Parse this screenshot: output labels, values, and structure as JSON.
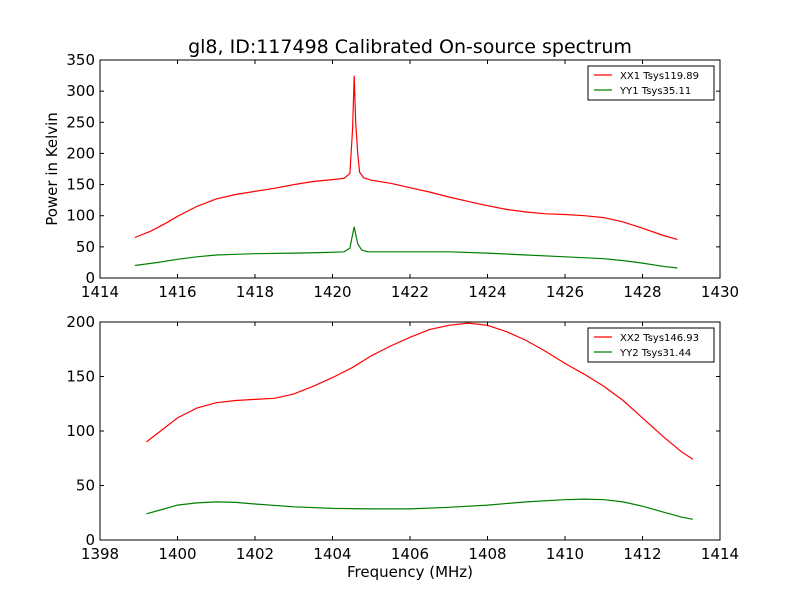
{
  "figure": {
    "title": "gl8, ID:117498 Calibrated On-source spectrum",
    "ylabel": "Power in Kelvin",
    "xlabel": "Frequency (MHz)"
  },
  "chart_data": [
    {
      "type": "line",
      "title": "gl8, ID:117498 Calibrated On-source spectrum",
      "xlabel": "",
      "ylabel": "Power in Kelvin",
      "xlim": [
        1414,
        1430
      ],
      "ylim": [
        0,
        350
      ],
      "xticks": [
        "1414",
        "1416",
        "1418",
        "1420",
        "1422",
        "1424",
        "1426",
        "1428",
        "1430"
      ],
      "yticks": [
        "0",
        "50",
        "100",
        "150",
        "200",
        "250",
        "300",
        "350"
      ],
      "legend_position": "top-right",
      "grid": false,
      "series": [
        {
          "name": "XX1 Tsys119.89",
          "color": "#ff0000",
          "x": [
            1414.9,
            1415.3,
            1415.7,
            1416.0,
            1416.5,
            1417.0,
            1417.5,
            1418.0,
            1418.5,
            1419.0,
            1419.5,
            1420.0,
            1420.3,
            1420.45,
            1420.52,
            1420.56,
            1420.6,
            1420.65,
            1420.7,
            1420.8,
            1421.0,
            1421.5,
            1422.0,
            1422.5,
            1423.0,
            1423.5,
            1424.0,
            1424.5,
            1425.0,
            1425.5,
            1426.0,
            1426.5,
            1427.0,
            1427.5,
            1428.0,
            1428.5,
            1428.9
          ],
          "y": [
            65,
            75,
            88,
            99,
            115,
            127,
            134,
            139,
            144,
            150,
            155,
            158,
            160,
            168,
            240,
            325,
            250,
            200,
            170,
            161,
            157,
            152,
            145,
            138,
            130,
            123,
            116,
            110,
            106,
            103,
            102,
            100,
            97,
            90,
            80,
            69,
            62
          ]
        },
        {
          "name": "YY1 Tsys35.11",
          "color": "#008000",
          "x": [
            1414.9,
            1415.5,
            1416.0,
            1416.5,
            1417.0,
            1417.5,
            1418.0,
            1419.0,
            1419.8,
            1420.3,
            1420.45,
            1420.52,
            1420.56,
            1420.6,
            1420.65,
            1420.75,
            1420.9,
            1421.5,
            1422.0,
            1423.0,
            1424.0,
            1425.0,
            1426.0,
            1427.0,
            1427.5,
            1428.0,
            1428.5,
            1428.9
          ],
          "y": [
            20,
            25,
            30,
            34,
            37,
            38,
            39,
            40,
            41,
            42,
            48,
            70,
            82,
            70,
            55,
            45,
            42,
            42,
            42,
            42,
            40,
            37,
            34,
            31,
            28,
            24,
            19,
            16
          ]
        }
      ]
    },
    {
      "type": "line",
      "title": "",
      "xlabel": "Frequency (MHz)",
      "ylabel": "",
      "xlim": [
        1398,
        1414
      ],
      "ylim": [
        0,
        200
      ],
      "xticks": [
        "1398",
        "1400",
        "1402",
        "1404",
        "1406",
        "1408",
        "1410",
        "1412",
        "1414"
      ],
      "yticks": [
        "0",
        "50",
        "100",
        "150",
        "200"
      ],
      "legend_position": "top-right",
      "grid": false,
      "series": [
        {
          "name": "XX2 Tsys146.93",
          "color": "#ff0000",
          "x": [
            1399.2,
            1399.6,
            1400.0,
            1400.5,
            1401.0,
            1401.5,
            1402.0,
            1402.5,
            1403.0,
            1403.5,
            1404.0,
            1404.5,
            1405.0,
            1405.5,
            1406.0,
            1406.5,
            1407.0,
            1407.5,
            1408.0,
            1408.5,
            1409.0,
            1409.5,
            1410.0,
            1410.5,
            1411.0,
            1411.5,
            1412.0,
            1412.5,
            1413.0,
            1413.3
          ],
          "y": [
            90,
            101,
            112,
            121,
            126,
            128,
            129,
            130,
            134,
            141,
            149,
            158,
            169,
            178,
            186,
            193,
            197,
            199,
            197,
            191,
            183,
            173,
            162,
            152,
            141,
            128,
            112,
            96,
            81,
            74
          ]
        },
        {
          "name": "YY2 Tsys31.44",
          "color": "#008000",
          "x": [
            1399.2,
            1399.6,
            1400.0,
            1400.5,
            1401.0,
            1401.5,
            1402.0,
            1403.0,
            1404.0,
            1405.0,
            1406.0,
            1407.0,
            1408.0,
            1409.0,
            1410.0,
            1410.5,
            1411.0,
            1411.5,
            1412.0,
            1412.5,
            1413.0,
            1413.3
          ],
          "y": [
            24,
            28,
            32,
            34,
            35,
            34.5,
            33,
            30.5,
            29,
            28.5,
            28.5,
            30,
            32,
            35,
            37,
            37.5,
            37,
            35,
            31,
            26,
            21,
            19
          ]
        }
      ]
    }
  ]
}
